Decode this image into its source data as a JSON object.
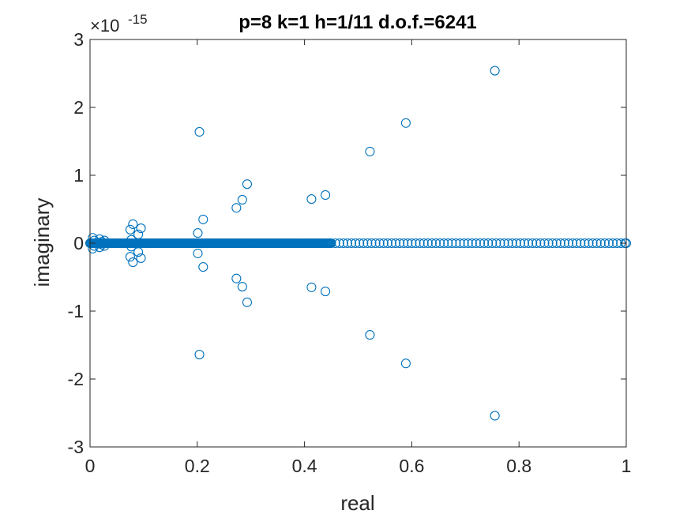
{
  "chart_data": {
    "type": "scatter",
    "title": "p=8 k=1 h=1/11 d.o.f.=6241",
    "xlabel": "real",
    "ylabel": "imaginary",
    "xlim": [
      0,
      1
    ],
    "ylim": [
      -3,
      3
    ],
    "y_exponent_label": "×10",
    "y_exponent_power": "-15",
    "y_scale": 1e-15,
    "x_ticks": [
      "0",
      "0.2",
      "0.4",
      "0.6",
      "0.8",
      "1"
    ],
    "y_ticks": [
      "-3",
      "-2",
      "-1",
      "0",
      "1",
      "2",
      "3"
    ],
    "grid": false,
    "marker_color": "#0072BD",
    "series": [
      {
        "marker": "circle",
        "points": [
          [
            0.005,
            0.08
          ],
          [
            0.005,
            -0.08
          ],
          [
            0.008,
            0.04
          ],
          [
            0.008,
            -0.04
          ],
          [
            0.018,
            0.06
          ],
          [
            0.018,
            -0.06
          ],
          [
            0.022,
            0.02
          ],
          [
            0.022,
            -0.02
          ],
          [
            0.027,
            0.04
          ],
          [
            0.027,
            -0.04
          ],
          [
            0.075,
            0.2
          ],
          [
            0.075,
            -0.2
          ],
          [
            0.077,
            0.05
          ],
          [
            0.077,
            -0.05
          ],
          [
            0.08,
            0.28
          ],
          [
            0.08,
            -0.28
          ],
          [
            0.09,
            0.13
          ],
          [
            0.09,
            -0.13
          ],
          [
            0.095,
            0.22
          ],
          [
            0.095,
            -0.22
          ],
          [
            0.201,
            0.15
          ],
          [
            0.201,
            -0.15
          ],
          [
            0.211,
            0.35
          ],
          [
            0.211,
            -0.35
          ],
          [
            0.204,
            1.64
          ],
          [
            0.204,
            -1.64
          ],
          [
            0.273,
            0.52
          ],
          [
            0.273,
            -0.52
          ],
          [
            0.284,
            0.64
          ],
          [
            0.284,
            -0.64
          ],
          [
            0.293,
            0.87
          ],
          [
            0.293,
            -0.87
          ],
          [
            0.413,
            0.65
          ],
          [
            0.413,
            -0.65
          ],
          [
            0.439,
            0.71
          ],
          [
            0.439,
            -0.71
          ],
          [
            0.522,
            1.35
          ],
          [
            0.522,
            -1.35
          ],
          [
            0.589,
            1.77
          ],
          [
            0.589,
            -1.77
          ],
          [
            0.755,
            2.54
          ],
          [
            0.755,
            -2.54
          ]
        ]
      },
      {
        "marker": "circle",
        "on_axis_real_values": {
          "dense_range": [
            0,
            0.45
          ],
          "sparse_range": [
            0.45,
            1.0
          ]
        }
      }
    ]
  }
}
